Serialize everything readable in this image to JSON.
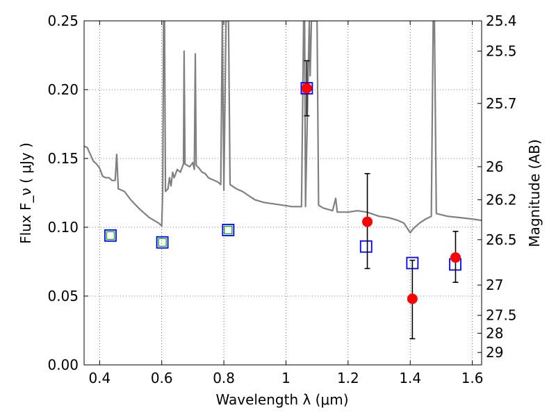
{
  "chart_data": {
    "type": "scatter",
    "xlabel": "Wavelength  λ (μm)",
    "ylabel": "Flux  F_ν  ( μJy )",
    "y2label": "Magnitude (AB)",
    "xlim": [
      0.35,
      1.63
    ],
    "ylim": [
      0.0,
      0.25
    ],
    "grid": true,
    "x_ticks": [
      0.4,
      0.6,
      0.8,
      1.0,
      1.2,
      1.4,
      1.6
    ],
    "x_tick_labels": [
      "0.4",
      "0.6",
      "0.8",
      "1",
      "1.2",
      "1.4",
      "1.6"
    ],
    "y_ticks": [
      0.0,
      0.05,
      0.1,
      0.15,
      0.2,
      0.25
    ],
    "y_tick_labels": [
      "0.00",
      "0.05",
      "0.10",
      "0.15",
      "0.20",
      "0.25"
    ],
    "y2_ticks": [
      {
        "label": "25.4",
        "flux": 0.25
      },
      {
        "label": "25.5",
        "flux": 0.228
      },
      {
        "label": "25.7",
        "flux": 0.19
      },
      {
        "label": "26",
        "flux": 0.144
      },
      {
        "label": "26.2",
        "flux": 0.12
      },
      {
        "label": "26.5",
        "flux": 0.091
      },
      {
        "label": "27",
        "flux": 0.058
      },
      {
        "label": "27.5",
        "flux": 0.036
      },
      {
        "label": "28",
        "flux": 0.023
      },
      {
        "label": "29",
        "flux": 0.009
      }
    ],
    "series": [
      {
        "kind": "line",
        "color": "#808080",
        "points": [
          [
            0.35,
            0.159
          ],
          [
            0.36,
            0.158
          ],
          [
            0.37,
            0.153
          ],
          [
            0.38,
            0.148
          ],
          [
            0.39,
            0.146
          ],
          [
            0.4,
            0.143
          ],
          [
            0.41,
            0.137
          ],
          [
            0.42,
            0.136
          ],
          [
            0.43,
            0.136
          ],
          [
            0.44,
            0.134
          ],
          [
            0.45,
            0.134
          ],
          [
            0.455,
            0.153
          ],
          [
            0.46,
            0.128
          ],
          [
            0.48,
            0.126
          ],
          [
            0.5,
            0.12
          ],
          [
            0.53,
            0.113
          ],
          [
            0.56,
            0.107
          ],
          [
            0.59,
            0.103
          ],
          [
            0.6,
            0.101
          ],
          [
            0.603,
            0.126
          ],
          [
            0.606,
            0.25
          ],
          [
            0.609,
            0.25
          ],
          [
            0.612,
            0.126
          ],
          [
            0.62,
            0.128
          ],
          [
            0.625,
            0.136
          ],
          [
            0.63,
            0.13
          ],
          [
            0.635,
            0.14
          ],
          [
            0.64,
            0.136
          ],
          [
            0.65,
            0.142
          ],
          [
            0.66,
            0.14
          ],
          [
            0.67,
            0.146
          ],
          [
            0.672,
            0.228
          ],
          [
            0.675,
            0.146
          ],
          [
            0.69,
            0.144
          ],
          [
            0.7,
            0.147
          ],
          [
            0.705,
            0.142
          ],
          [
            0.708,
            0.226
          ],
          [
            0.711,
            0.145
          ],
          [
            0.72,
            0.143
          ],
          [
            0.73,
            0.14
          ],
          [
            0.74,
            0.139
          ],
          [
            0.75,
            0.136
          ],
          [
            0.76,
            0.135
          ],
          [
            0.77,
            0.134
          ],
          [
            0.78,
            0.133
          ],
          [
            0.79,
            0.131
          ],
          [
            0.795,
            0.25
          ],
          [
            0.8,
            0.127
          ],
          [
            0.807,
            0.25
          ],
          [
            0.811,
            0.25
          ],
          [
            0.815,
            0.25
          ],
          [
            0.82,
            0.131
          ],
          [
            0.84,
            0.128
          ],
          [
            0.86,
            0.126
          ],
          [
            0.88,
            0.123
          ],
          [
            0.9,
            0.12
          ],
          [
            0.93,
            0.118
          ],
          [
            0.96,
            0.117
          ],
          [
            0.99,
            0.116
          ],
          [
            1.02,
            0.115
          ],
          [
            1.05,
            0.115
          ],
          [
            1.057,
            0.25
          ],
          [
            1.06,
            0.25
          ],
          [
            1.063,
            0.115
          ],
          [
            1.075,
            0.25
          ],
          [
            1.078,
            0.21
          ],
          [
            1.082,
            0.25
          ],
          [
            1.1,
            0.25
          ],
          [
            1.105,
            0.116
          ],
          [
            1.12,
            0.114
          ],
          [
            1.15,
            0.112
          ],
          [
            1.16,
            0.121
          ],
          [
            1.165,
            0.111
          ],
          [
            1.2,
            0.111
          ],
          [
            1.23,
            0.112
          ],
          [
            1.26,
            0.111
          ],
          [
            1.3,
            0.108
          ],
          [
            1.33,
            0.107
          ],
          [
            1.36,
            0.105
          ],
          [
            1.38,
            0.103
          ],
          [
            1.4,
            0.096
          ],
          [
            1.41,
            0.099
          ],
          [
            1.43,
            0.103
          ],
          [
            1.45,
            0.106
          ],
          [
            1.468,
            0.108
          ],
          [
            1.474,
            0.25
          ],
          [
            1.478,
            0.25
          ],
          [
            1.484,
            0.11
          ],
          [
            1.52,
            0.108
          ],
          [
            1.56,
            0.107
          ],
          [
            1.6,
            0.106
          ],
          [
            1.63,
            0.105
          ]
        ]
      },
      {
        "kind": "square",
        "edge_color": "#0000ff",
        "points": [
          [
            0.435,
            0.094
          ],
          [
            0.602,
            0.089
          ],
          [
            0.814,
            0.098
          ],
          [
            1.067,
            0.201
          ],
          [
            1.258,
            0.086
          ],
          [
            1.407,
            0.074
          ],
          [
            1.545,
            0.073
          ]
        ]
      },
      {
        "kind": "inner-square",
        "edge_color": "#00a000",
        "points": [
          [
            0.435,
            0.094
          ],
          [
            0.602,
            0.089
          ],
          [
            0.814,
            0.098
          ]
        ]
      },
      {
        "kind": "point",
        "color": "#ff0000",
        "points": [
          {
            "x": 1.067,
            "y": 0.201,
            "err_low": 0.181,
            "err_high": 0.221
          },
          {
            "x": 1.262,
            "y": 0.104,
            "err_low": 0.07,
            "err_high": 0.139
          },
          {
            "x": 1.407,
            "y": 0.048,
            "err_low": 0.019,
            "err_high": 0.076
          },
          {
            "x": 1.546,
            "y": 0.078,
            "err_low": 0.06,
            "err_high": 0.097
          }
        ]
      }
    ]
  }
}
